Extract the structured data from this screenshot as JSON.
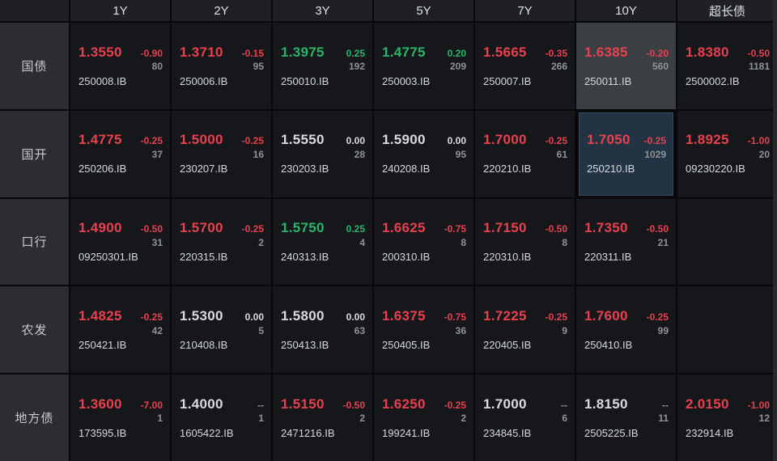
{
  "colors": {
    "down_red": "#e8404e",
    "up_green": "#2ab56a",
    "flat_white": "#d9dbde",
    "volume_gray": "#8f9296",
    "selected_gray_bg": "#3b3e43",
    "selected_teal_bg": "#223443",
    "cell_bg": "#15171b",
    "label_bg": "#2b2d31",
    "header_bg": "#1e2025"
  },
  "header": {
    "columns": [
      {
        "id": "1y",
        "label": "1Y"
      },
      {
        "id": "2y",
        "label": "2Y"
      },
      {
        "id": "3y",
        "label": "3Y"
      },
      {
        "id": "5y",
        "label": "5Y"
      },
      {
        "id": "7y",
        "label": "7Y"
      },
      {
        "id": "10y",
        "label": "10Y"
      },
      {
        "id": "super-long",
        "label": "超长债"
      }
    ]
  },
  "rows": [
    {
      "id": "treasury",
      "label": "国债",
      "cells": [
        {
          "yield": "1.3550",
          "change": "-0.90",
          "volume": "80",
          "code": "250008.IB",
          "dir": "red"
        },
        {
          "yield": "1.3710",
          "change": "-0.15",
          "volume": "95",
          "code": "250006.IB",
          "dir": "red"
        },
        {
          "yield": "1.3975",
          "change": "0.25",
          "volume": "192",
          "code": "250010.IB",
          "dir": "green"
        },
        {
          "yield": "1.4775",
          "change": "0.20",
          "volume": "209",
          "code": "250003.IB",
          "dir": "green"
        },
        {
          "yield": "1.5665",
          "change": "-0.35",
          "volume": "266",
          "code": "250007.IB",
          "dir": "red"
        },
        {
          "yield": "1.6385",
          "change": "-0.20",
          "volume": "560",
          "code": "250011.IB",
          "dir": "red",
          "highlight": "gray"
        },
        {
          "yield": "1.8380",
          "change": "-0.50",
          "volume": "1181",
          "code": "2500002.IB",
          "dir": "red"
        }
      ]
    },
    {
      "id": "cdb",
      "label": "国开",
      "cells": [
        {
          "yield": "1.4775",
          "change": "-0.25",
          "volume": "37",
          "code": "250206.IB",
          "dir": "red"
        },
        {
          "yield": "1.5000",
          "change": "-0.25",
          "volume": "16",
          "code": "230207.IB",
          "dir": "red"
        },
        {
          "yield": "1.5550",
          "change": "0.00",
          "volume": "28",
          "code": "230203.IB",
          "dir": "flat"
        },
        {
          "yield": "1.5900",
          "change": "0.00",
          "volume": "95",
          "code": "240208.IB",
          "dir": "flat"
        },
        {
          "yield": "1.7000",
          "change": "-0.25",
          "volume": "61",
          "code": "220210.IB",
          "dir": "red"
        },
        {
          "yield": "1.7050",
          "change": "-0.25",
          "volume": "1029",
          "code": "250210.IB",
          "dir": "red",
          "highlight": "teal"
        },
        {
          "yield": "1.8925",
          "change": "-1.00",
          "volume": "20",
          "code": "09230220.IB",
          "dir": "red"
        }
      ]
    },
    {
      "id": "exim",
      "label": "口行",
      "cells": [
        {
          "yield": "1.4900",
          "change": "-0.50",
          "volume": "31",
          "code": "09250301.IB",
          "dir": "red"
        },
        {
          "yield": "1.5700",
          "change": "-0.25",
          "volume": "2",
          "code": "220315.IB",
          "dir": "red"
        },
        {
          "yield": "1.5750",
          "change": "0.25",
          "volume": "4",
          "code": "240313.IB",
          "dir": "green"
        },
        {
          "yield": "1.6625",
          "change": "-0.75",
          "volume": "8",
          "code": "200310.IB",
          "dir": "red"
        },
        {
          "yield": "1.7150",
          "change": "-0.50",
          "volume": "8",
          "code": "220310.IB",
          "dir": "red"
        },
        {
          "yield": "1.7350",
          "change": "-0.50",
          "volume": "21",
          "code": "220311.IB",
          "dir": "red"
        },
        {}
      ]
    },
    {
      "id": "adbc",
      "label": "农发",
      "cells": [
        {
          "yield": "1.4825",
          "change": "-0.25",
          "volume": "42",
          "code": "250421.IB",
          "dir": "red"
        },
        {
          "yield": "1.5300",
          "change": "0.00",
          "volume": "5",
          "code": "210408.IB",
          "dir": "flat"
        },
        {
          "yield": "1.5800",
          "change": "0.00",
          "volume": "63",
          "code": "250413.IB",
          "dir": "flat"
        },
        {
          "yield": "1.6375",
          "change": "-0.75",
          "volume": "36",
          "code": "250405.IB",
          "dir": "red"
        },
        {
          "yield": "1.7225",
          "change": "-0.25",
          "volume": "9",
          "code": "220405.IB",
          "dir": "red"
        },
        {
          "yield": "1.7600",
          "change": "-0.25",
          "volume": "99",
          "code": "250410.IB",
          "dir": "red"
        },
        {}
      ]
    },
    {
      "id": "local-gov",
      "label": "地方债",
      "cells": [
        {
          "yield": "1.3600",
          "change": "-7.00",
          "volume": "1",
          "code": "173595.IB",
          "dir": "red"
        },
        {
          "yield": "1.4000",
          "change": "--",
          "volume": "1",
          "code": "1605422.IB",
          "dir": "flat"
        },
        {
          "yield": "1.5150",
          "change": "-0.50",
          "volume": "2",
          "code": "2471216.IB",
          "dir": "red"
        },
        {
          "yield": "1.6250",
          "change": "-0.25",
          "volume": "2",
          "code": "199241.IB",
          "dir": "red"
        },
        {
          "yield": "1.7000",
          "change": "--",
          "volume": "6",
          "code": "234845.IB",
          "dir": "flat"
        },
        {
          "yield": "1.8150",
          "change": "--",
          "volume": "11",
          "code": "2505225.IB",
          "dir": "flat"
        },
        {
          "yield": "2.0150",
          "change": "-1.00",
          "volume": "12",
          "code": "232914.IB",
          "dir": "red"
        }
      ]
    }
  ]
}
